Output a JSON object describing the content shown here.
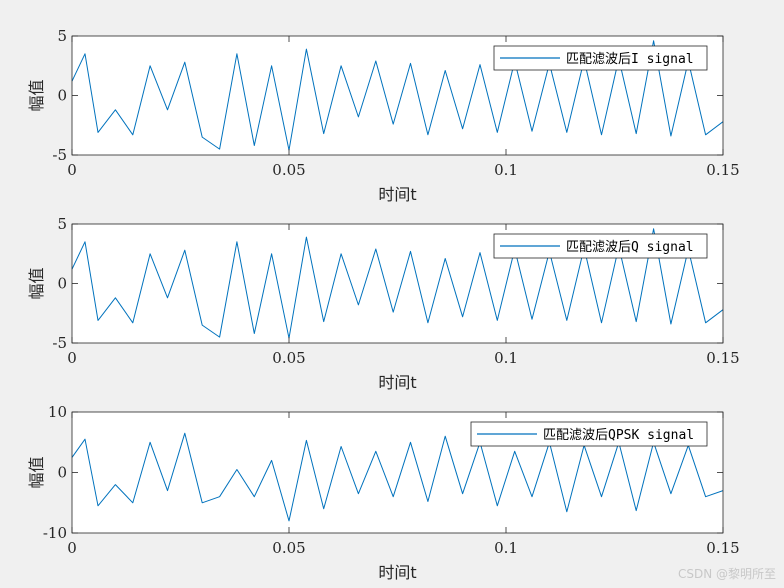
{
  "chart_data": [
    {
      "type": "line",
      "ylabel": "幅值",
      "xlabel": "时间t",
      "xlim": [
        0,
        0.15
      ],
      "ylim": [
        -5,
        5
      ],
      "xticks": [
        0,
        0.05,
        0.1,
        0.15
      ],
      "xtick_labels": [
        "0",
        "0.05",
        "0.1",
        "0.15"
      ],
      "yticks": [
        -5,
        0,
        5
      ],
      "ytick_labels": [
        "-5",
        "0",
        "5"
      ],
      "legend": "匹配滤波后I signal",
      "legend_position": "top-right",
      "color": "#0072BD",
      "series": [
        {
          "name": "匹配滤波后I signal",
          "x": [
            0,
            0.003,
            0.006,
            0.01,
            0.014,
            0.018,
            0.022,
            0.026,
            0.03,
            0.034,
            0.038,
            0.042,
            0.046,
            0.05,
            0.054,
            0.058,
            0.062,
            0.066,
            0.07,
            0.074,
            0.078,
            0.082,
            0.086,
            0.09,
            0.094,
            0.098,
            0.102,
            0.106,
            0.11,
            0.114,
            0.118,
            0.122,
            0.126,
            0.13,
            0.134,
            0.138,
            0.142,
            0.146,
            0.15
          ],
          "y": [
            1.2,
            3.5,
            -3.1,
            -1.2,
            -3.3,
            2.5,
            -1.2,
            2.8,
            -3.5,
            -4.5,
            3.5,
            -4.2,
            2.5,
            -4.6,
            3.9,
            -3.2,
            2.5,
            -1.8,
            2.9,
            -2.4,
            2.7,
            -3.3,
            2.1,
            -2.8,
            2.6,
            -3.1,
            2.9,
            -3,
            2.7,
            -3.1,
            3,
            -3.3,
            3.1,
            -3.2,
            4.6,
            -3.4,
            2.9,
            -3.3,
            -2.2
          ]
        }
      ]
    },
    {
      "type": "line",
      "ylabel": "幅值",
      "xlabel": "时间t",
      "xlim": [
        0,
        0.15
      ],
      "ylim": [
        -5,
        5
      ],
      "xticks": [
        0,
        0.05,
        0.1,
        0.15
      ],
      "xtick_labels": [
        "0",
        "0.05",
        "0.1",
        "0.15"
      ],
      "yticks": [
        -5,
        0,
        5
      ],
      "ytick_labels": [
        "-5",
        "0",
        "5"
      ],
      "legend": "匹配滤波后Q signal",
      "legend_position": "top-right",
      "color": "#0072BD",
      "series": [
        {
          "name": "匹配滤波后Q signal",
          "x": [
            0,
            0.003,
            0.006,
            0.01,
            0.014,
            0.018,
            0.022,
            0.026,
            0.03,
            0.034,
            0.038,
            0.042,
            0.046,
            0.05,
            0.054,
            0.058,
            0.062,
            0.066,
            0.07,
            0.074,
            0.078,
            0.082,
            0.086,
            0.09,
            0.094,
            0.098,
            0.102,
            0.106,
            0.11,
            0.114,
            0.118,
            0.122,
            0.126,
            0.13,
            0.134,
            0.138,
            0.142,
            0.146,
            0.15
          ],
          "y": [
            1.2,
            3.5,
            -3.1,
            -1.2,
            -3.3,
            2.5,
            -1.2,
            2.8,
            -3.5,
            -4.5,
            3.5,
            -4.2,
            2.5,
            -4.6,
            3.9,
            -3.2,
            2.5,
            -1.8,
            2.9,
            -2.4,
            2.7,
            -3.3,
            2.1,
            -2.8,
            2.6,
            -3.1,
            2.9,
            -3,
            2.7,
            -3.1,
            3,
            -3.3,
            3.1,
            -3.2,
            4.6,
            -3.4,
            2.9,
            -3.3,
            -2.2
          ]
        }
      ]
    },
    {
      "type": "line",
      "ylabel": "幅值",
      "xlabel": "时间t",
      "xlim": [
        0,
        0.15
      ],
      "ylim": [
        -10,
        10
      ],
      "xticks": [
        0,
        0.05,
        0.1,
        0.15
      ],
      "xtick_labels": [
        "0",
        "0.05",
        "0.1",
        "0.15"
      ],
      "yticks": [
        -10,
        0,
        10
      ],
      "ytick_labels": [
        "-10",
        "0",
        "10"
      ],
      "legend": "匹配滤波后QPSK signal",
      "legend_position": "top-right",
      "color": "#0072BD",
      "series": [
        {
          "name": "匹配滤波后QPSK signal",
          "x": [
            0,
            0.003,
            0.006,
            0.01,
            0.014,
            0.018,
            0.022,
            0.026,
            0.03,
            0.034,
            0.038,
            0.042,
            0.046,
            0.05,
            0.054,
            0.058,
            0.062,
            0.066,
            0.07,
            0.074,
            0.078,
            0.082,
            0.086,
            0.09,
            0.094,
            0.098,
            0.102,
            0.106,
            0.11,
            0.114,
            0.118,
            0.122,
            0.126,
            0.13,
            0.134,
            0.138,
            0.142,
            0.146,
            0.15
          ],
          "y": [
            2.5,
            5.5,
            -5.5,
            -2,
            -5,
            5,
            -3,
            6.5,
            -5,
            -4,
            0.5,
            -4,
            2,
            -8,
            5.3,
            -6,
            4.3,
            -3.5,
            3.5,
            -4,
            5,
            -4.8,
            6,
            -3.5,
            5,
            -5.5,
            3.5,
            -4,
            5,
            -6.5,
            4.5,
            -4,
            5,
            -6.3,
            5,
            -3.5,
            4.5,
            -4,
            -3
          ]
        }
      ]
    }
  ],
  "watermark": "CSDN @黎明所至"
}
